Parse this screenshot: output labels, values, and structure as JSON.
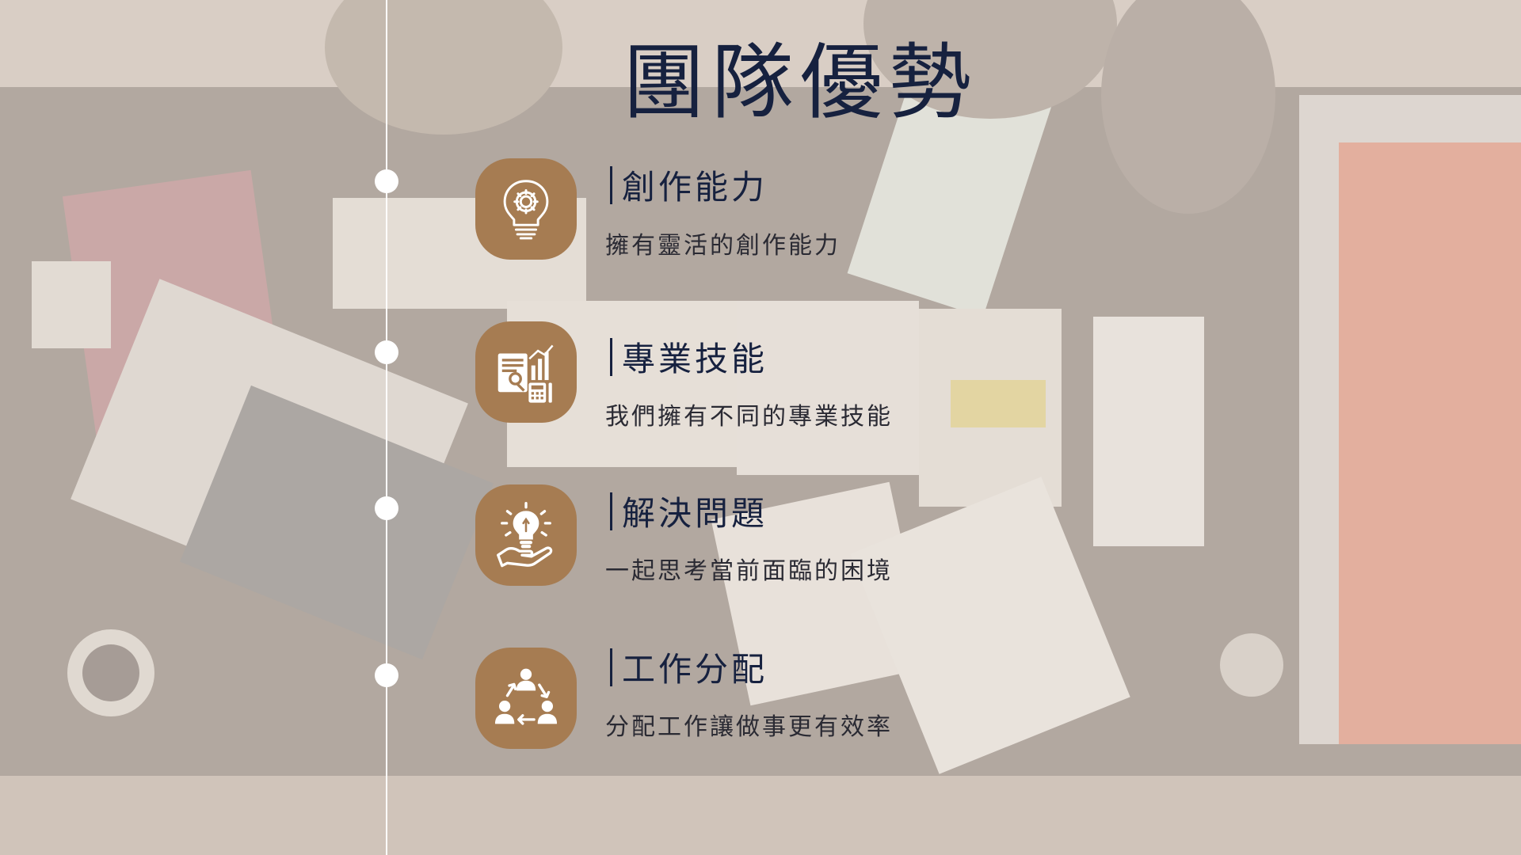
{
  "title": "團隊優勢",
  "colors": {
    "title": "#16213f",
    "badge": "#a67c52",
    "timeline": "#ffffff"
  },
  "items": [
    {
      "heading": "創作能力",
      "description": "擁有靈活的創作能力",
      "icon": "lightbulb-gear-icon"
    },
    {
      "heading": "專業技能",
      "description": "我們擁有不同的專業技能",
      "icon": "document-chart-calculator-icon"
    },
    {
      "heading": "解決問題",
      "description": "一起思考當前面臨的困境",
      "icon": "hand-lightbulb-icon"
    },
    {
      "heading": "工作分配",
      "description": "分配工作讓做事更有效率",
      "icon": "team-cycle-icon"
    }
  ]
}
